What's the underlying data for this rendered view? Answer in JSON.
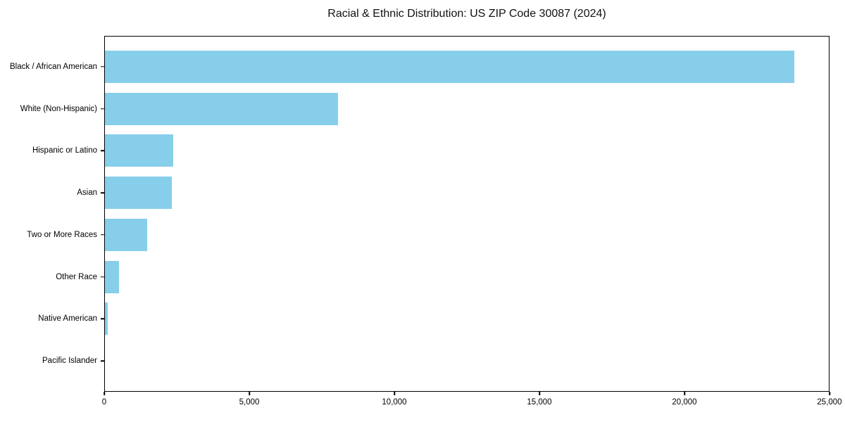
{
  "chart_data": {
    "type": "bar",
    "orientation": "horizontal",
    "title": "Racial & Ethnic Distribution: US ZIP Code 30087 (2024)",
    "categories": [
      "Black / African American",
      "White (Non-Hispanic)",
      "Hispanic or Latino",
      "Asian",
      "Two or More Races",
      "Other Race",
      "Native American",
      "Pacific Islander"
    ],
    "values": [
      23800,
      8050,
      2350,
      2300,
      1450,
      490,
      100,
      0
    ],
    "xlabel": "",
    "ylabel": "",
    "xlim": [
      0,
      25000
    ],
    "x_ticks": [
      0,
      5000,
      10000,
      15000,
      20000,
      25000
    ],
    "x_tick_labels": [
      "0",
      "5,000",
      "10,000",
      "15,000",
      "20,000",
      "25,000"
    ],
    "grid": false,
    "legend": null,
    "bar_color": "#87CEEB",
    "axis_color": "#000000",
    "text_color": "#000000",
    "background_color": "#ffffff"
  }
}
